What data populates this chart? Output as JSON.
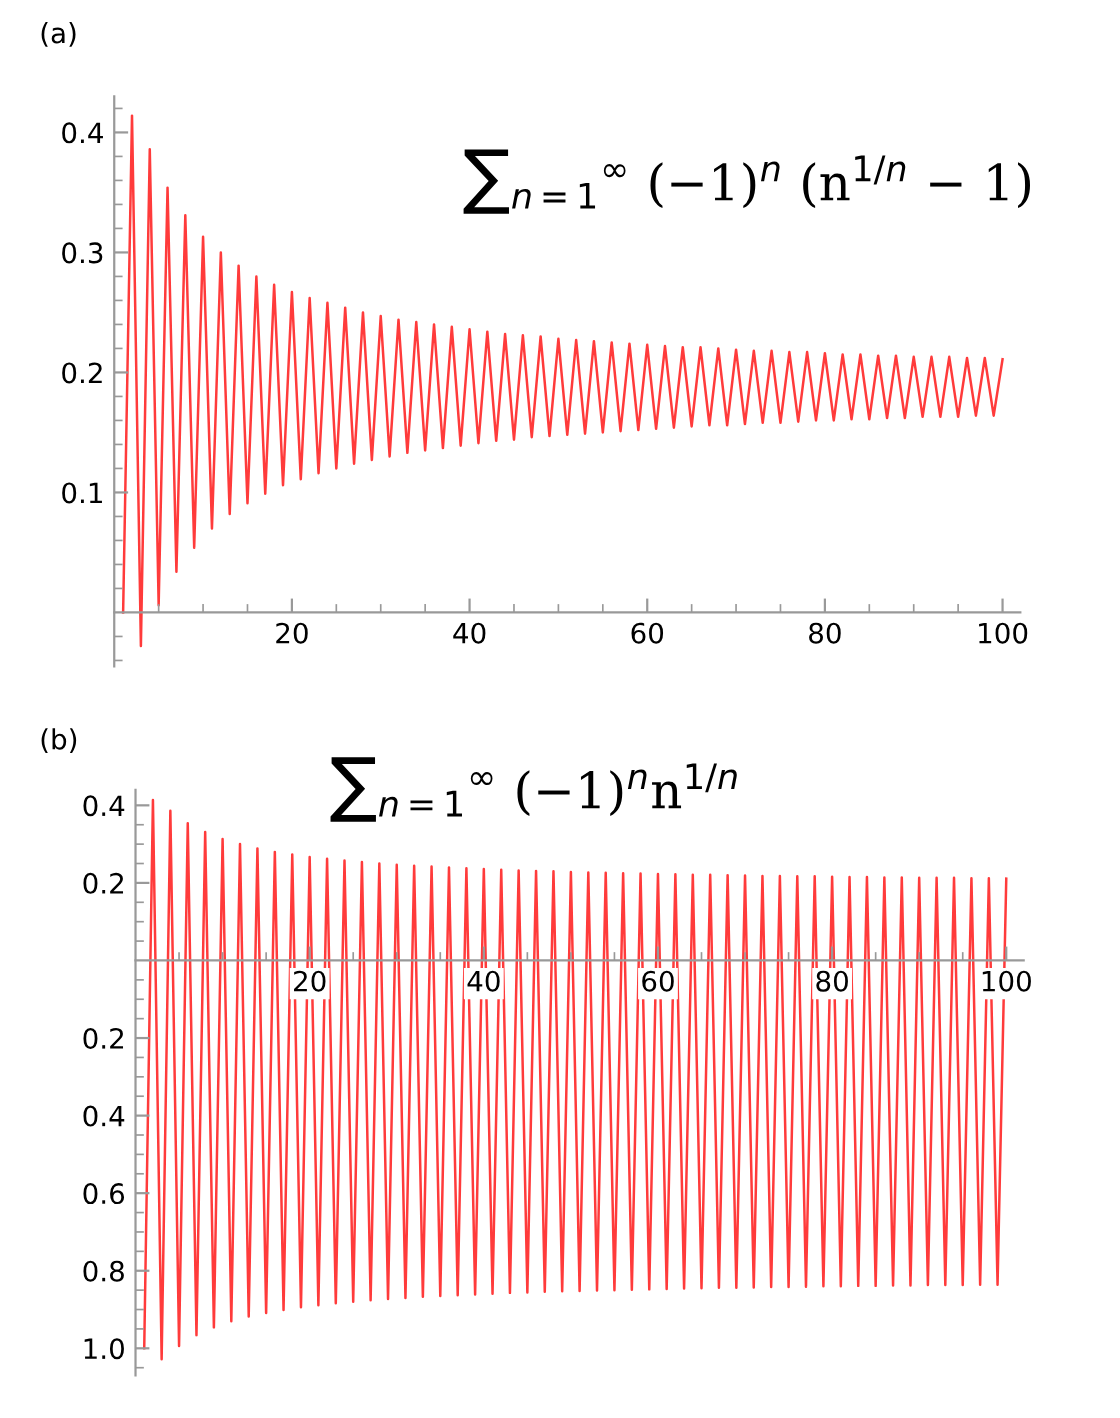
{
  "chart_data": [
    {
      "type": "line",
      "title": "(a)",
      "annotations": [
        "∑$_{n=1}$$^{∞}$ (−1)$^{n}$ (n$^{1/n}$ − 1)"
      ],
      "x": [
        1,
        2,
        3,
        4,
        5,
        6,
        7,
        8,
        9,
        10,
        11,
        12,
        13,
        14,
        15,
        16,
        17,
        18,
        19,
        20,
        21,
        22,
        23,
        24,
        25,
        26,
        27,
        28,
        29,
        30,
        31,
        32,
        33,
        34,
        35,
        36,
        37,
        38,
        39,
        40,
        41,
        42,
        43,
        44,
        45,
        46,
        47,
        48,
        49,
        50,
        51,
        52,
        53,
        54,
        55,
        56,
        57,
        58,
        59,
        60,
        61,
        62,
        63,
        64,
        65,
        66,
        67,
        68,
        69,
        70,
        71,
        72,
        73,
        74,
        75,
        76,
        77,
        78,
        79,
        80,
        81,
        82,
        83,
        84,
        85,
        86,
        87,
        88,
        89,
        90,
        91,
        92,
        93,
        94,
        95,
        96,
        97,
        98,
        99,
        100
      ],
      "series": [
        {
          "color": "#ff3b3b",
          "values": [
            0,
            0.414,
            -0.028,
            0.386,
            0.006,
            0.354,
            0.034,
            0.331,
            0.054,
            0.313,
            0.07,
            0.3,
            0.082,
            0.289,
            0.091,
            0.28,
            0.099,
            0.273,
            0.106,
            0.267,
            0.111,
            0.262,
            0.116,
            0.258,
            0.12,
            0.254,
            0.124,
            0.25,
            0.127,
            0.247,
            0.13,
            0.244,
            0.133,
            0.242,
            0.135,
            0.24,
            0.137,
            0.238,
            0.139,
            0.236,
            0.141,
            0.234,
            0.143,
            0.232,
            0.144,
            0.231,
            0.146,
            0.23,
            0.147,
            0.228,
            0.148,
            0.227,
            0.149,
            0.226,
            0.15,
            0.225,
            0.151,
            0.224,
            0.152,
            0.223,
            0.153,
            0.222,
            0.154,
            0.221,
            0.155,
            0.221,
            0.156,
            0.22,
            0.156,
            0.219,
            0.157,
            0.218,
            0.158,
            0.218,
            0.158,
            0.217,
            0.159,
            0.217,
            0.16,
            0.216,
            0.16,
            0.215,
            0.161,
            0.215,
            0.161,
            0.214,
            0.162,
            0.214,
            0.162,
            0.213,
            0.163,
            0.213,
            0.163,
            0.213,
            0.163,
            0.212,
            0.164,
            0.212,
            0.164,
            0.211
          ]
        }
      ],
      "xlim": [
        0,
        102
      ],
      "ylim": [
        -0.045,
        0.43
      ],
      "xticks": [
        {
          "value": 5,
          "label": null
        },
        {
          "value": 10,
          "label": null
        },
        {
          "value": 15,
          "label": null
        },
        20,
        {
          "value": 25,
          "label": null
        },
        {
          "value": 30,
          "label": null
        },
        {
          "value": 35,
          "label": null
        },
        40,
        {
          "value": 45,
          "label": null
        },
        {
          "value": 50,
          "label": null
        },
        {
          "value": 55,
          "label": null
        },
        60,
        {
          "value": 65,
          "label": null
        },
        {
          "value": 70,
          "label": null
        },
        {
          "value": 75,
          "label": null
        },
        80,
        {
          "value": 85,
          "label": null
        },
        {
          "value": 90,
          "label": null
        },
        {
          "value": 95,
          "label": null
        },
        100
      ],
      "yticks": [
        {
          "value": -0.04,
          "label": null
        },
        {
          "value": -0.02,
          "label": null
        },
        {
          "value": 0.02,
          "label": null
        },
        {
          "value": 0.04,
          "label": null
        },
        {
          "value": 0.06,
          "label": null
        },
        {
          "value": 0.08,
          "label": null
        },
        0.1,
        {
          "value": 0.12,
          "label": null
        },
        {
          "value": 0.14,
          "label": null
        },
        {
          "value": 0.16,
          "label": null
        },
        {
          "value": 0.18,
          "label": null
        },
        0.2,
        {
          "value": 0.22,
          "label": null
        },
        {
          "value": 0.24,
          "label": null
        },
        {
          "value": 0.26,
          "label": null
        },
        {
          "value": 0.28,
          "label": null
        },
        0.3,
        {
          "value": 0.32,
          "label": null
        },
        {
          "value": 0.34,
          "label": null
        },
        {
          "value": 0.36,
          "label": null
        },
        {
          "value": 0.38,
          "label": null
        },
        0.4,
        {
          "value": 0.42,
          "label": null
        }
      ],
      "grid": false,
      "legend": false,
      "marker": "none",
      "line_style": "solid"
    },
    {
      "type": "line",
      "title": "(b)",
      "annotations": [
        "∑$_{n=1}$$^{∞}$ (−1)$^{n}$n$^{1/n}$"
      ],
      "x": [
        1,
        2,
        3,
        4,
        5,
        6,
        7,
        8,
        9,
        10,
        11,
        12,
        13,
        14,
        15,
        16,
        17,
        18,
        19,
        20,
        21,
        22,
        23,
        24,
        25,
        26,
        27,
        28,
        29,
        30,
        31,
        32,
        33,
        34,
        35,
        36,
        37,
        38,
        39,
        40,
        41,
        42,
        43,
        44,
        45,
        46,
        47,
        48,
        49,
        50,
        51,
        52,
        53,
        54,
        55,
        56,
        57,
        58,
        59,
        60,
        61,
        62,
        63,
        64,
        65,
        66,
        67,
        68,
        69,
        70,
        71,
        72,
        73,
        74,
        75,
        76,
        77,
        78,
        79,
        80,
        81,
        82,
        83,
        84,
        85,
        86,
        87,
        88,
        89,
        90,
        91,
        92,
        93,
        94,
        95,
        96,
        97,
        98,
        99,
        100
      ],
      "series": [
        {
          "color": "#ff3b3b",
          "values": [
            -1,
            0.414,
            -1.028,
            0.386,
            -0.994,
            0.354,
            -0.966,
            0.331,
            -0.946,
            0.313,
            -0.93,
            0.3,
            -0.918,
            0.289,
            -0.909,
            0.28,
            -0.901,
            0.273,
            -0.894,
            0.267,
            -0.889,
            0.262,
            -0.884,
            0.258,
            -0.88,
            0.254,
            -0.876,
            0.25,
            -0.873,
            0.247,
            -0.87,
            0.244,
            -0.867,
            0.242,
            -0.865,
            0.24,
            -0.863,
            0.238,
            -0.861,
            0.236,
            -0.859,
            0.234,
            -0.857,
            0.232,
            -0.856,
            0.231,
            -0.854,
            0.23,
            -0.853,
            0.228,
            -0.852,
            0.227,
            -0.851,
            0.226,
            -0.85,
            0.225,
            -0.849,
            0.224,
            -0.848,
            0.223,
            -0.847,
            0.222,
            -0.846,
            0.221,
            -0.845,
            0.221,
            -0.844,
            0.22,
            -0.844,
            0.219,
            -0.843,
            0.218,
            -0.842,
            0.218,
            -0.842,
            0.217,
            -0.841,
            0.217,
            -0.84,
            0.216,
            -0.84,
            0.215,
            -0.839,
            0.215,
            -0.839,
            0.214,
            -0.838,
            0.214,
            -0.838,
            0.213,
            -0.837,
            0.213,
            -0.837,
            0.213,
            -0.837,
            0.212,
            -0.836,
            0.212,
            -0.836,
            0.211
          ]
        }
      ],
      "xlim": [
        0,
        102
      ],
      "ylim": [
        -1.07,
        0.44
      ],
      "xticks": [
        {
          "value": 5,
          "label": null
        },
        {
          "value": 10,
          "label": null
        },
        {
          "value": 15,
          "label": null
        },
        20,
        {
          "value": 25,
          "label": null
        },
        {
          "value": 30,
          "label": null
        },
        {
          "value": 35,
          "label": null
        },
        40,
        {
          "value": 45,
          "label": null
        },
        {
          "value": 50,
          "label": null
        },
        {
          "value": 55,
          "label": null
        },
        60,
        {
          "value": 65,
          "label": null
        },
        {
          "value": 70,
          "label": null
        },
        {
          "value": 75,
          "label": null
        },
        80,
        {
          "value": 85,
          "label": null
        },
        {
          "value": 90,
          "label": null
        },
        {
          "value": 95,
          "label": null
        },
        100
      ],
      "yticks": [
        {
          "value": -1.05,
          "label": null
        },
        {
          "value": -1.0,
          "label": "1.0"
        },
        {
          "value": -0.95,
          "label": null
        },
        {
          "value": -0.9,
          "label": null
        },
        {
          "value": -0.85,
          "label": null
        },
        {
          "value": -0.8,
          "label": "0.8"
        },
        {
          "value": -0.75,
          "label": null
        },
        {
          "value": -0.7,
          "label": null
        },
        {
          "value": -0.65,
          "label": null
        },
        {
          "value": -0.6,
          "label": "0.6"
        },
        {
          "value": -0.55,
          "label": null
        },
        {
          "value": -0.5,
          "label": null
        },
        {
          "value": -0.45,
          "label": null
        },
        {
          "value": -0.4,
          "label": "0.4"
        },
        {
          "value": -0.35,
          "label": null
        },
        {
          "value": -0.3,
          "label": null
        },
        {
          "value": -0.25,
          "label": null
        },
        {
          "value": -0.2,
          "label": "0.2"
        },
        {
          "value": -0.15,
          "label": null
        },
        {
          "value": -0.1,
          "label": null
        },
        {
          "value": -0.05,
          "label": null
        },
        {
          "value": 0.05,
          "label": null
        },
        {
          "value": 0.1,
          "label": null
        },
        {
          "value": 0.15,
          "label": null
        },
        0.2,
        {
          "value": 0.25,
          "label": null
        },
        {
          "value": 0.3,
          "label": null
        },
        {
          "value": 0.35,
          "label": null
        },
        0.4
      ],
      "grid": false,
      "legend": false,
      "marker": "none",
      "line_style": "solid"
    }
  ]
}
